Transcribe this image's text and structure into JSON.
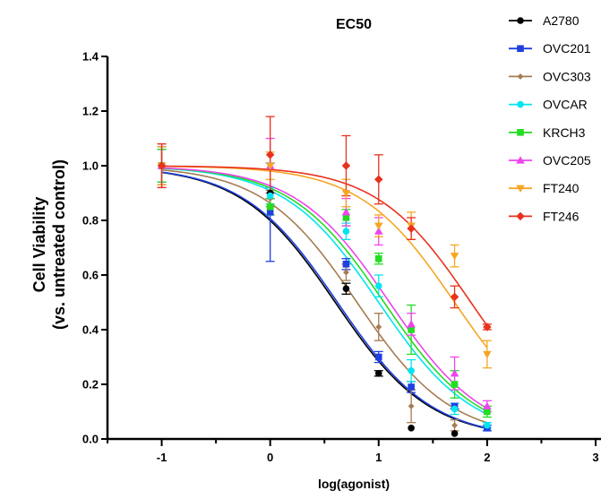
{
  "chart_data": {
    "type": "scatter",
    "title": "EC50",
    "xlabel": "log(agonist)",
    "ylabel_line1": "Cell Viability",
    "ylabel_line2": "(vs. untreated control)",
    "xlim": [
      -1.5,
      3
    ],
    "ylim": [
      0,
      1.4
    ],
    "xticks": [
      -1,
      0,
      1,
      2,
      3
    ],
    "xtick_labels": [
      "-1",
      "0",
      "1",
      "2",
      "3"
    ],
    "yticks": [
      0.0,
      0.2,
      0.4,
      0.6,
      0.8,
      1.0,
      1.2,
      1.4
    ],
    "ytick_labels": [
      "0.0",
      "0.2",
      "0.4",
      "0.6",
      "0.8",
      "1.0",
      "1.2",
      "1.4"
    ],
    "legend_position": "top-right (clipped at right edge)",
    "series": [
      {
        "name": "A2780",
        "color": "#000000",
        "marker": "circle",
        "x": [
          -1,
          0,
          0.7,
          1,
          1.3,
          1.7
        ],
        "y": [
          1.0,
          0.9,
          0.55,
          0.24,
          0.04,
          0.02
        ],
        "err": [
          0.07,
          0.02,
          0.02,
          0.01,
          0,
          0
        ],
        "fit": {
          "top": 1.0,
          "bottom": 0.0,
          "logEC50": 0.6,
          "hill": 1.0
        }
      },
      {
        "name": "OVC201",
        "color": "#1f3fe0",
        "marker": "square",
        "x": [
          -1,
          0,
          0.7,
          1,
          1.3,
          1.7,
          2
        ],
        "y": [
          1.0,
          0.83,
          0.64,
          0.3,
          0.19,
          0.12,
          0.04
        ],
        "err": [
          0.06,
          0.18,
          0.02,
          0.02,
          0.02,
          0.01,
          0.01
        ],
        "fit": {
          "top": 1.0,
          "bottom": 0.0,
          "logEC50": 0.62,
          "hill": 1.0
        }
      },
      {
        "name": "OVC303",
        "color": "#a67c52",
        "marker": "diamond-small",
        "x": [
          -1,
          0,
          0.7,
          1,
          1.3,
          1.7
        ],
        "y": [
          1.0,
          0.88,
          0.61,
          0.41,
          0.12,
          0.05
        ],
        "err": [
          0.06,
          0.03,
          0.03,
          0.05,
          0.06,
          0.02
        ],
        "fit": {
          "top": 1.0,
          "bottom": 0.0,
          "logEC50": 0.8,
          "hill": 1.0
        }
      },
      {
        "name": "OVCAR",
        "color": "#00e5ef",
        "marker": "circle",
        "x": [
          -1,
          0,
          0.7,
          1,
          1.3,
          1.7,
          2
        ],
        "y": [
          1.0,
          0.89,
          0.76,
          0.56,
          0.25,
          0.11,
          0.05
        ],
        "err": [
          0.06,
          0.03,
          0.03,
          0.04,
          0.04,
          0.02,
          0.01
        ],
        "fit": {
          "top": 1.0,
          "bottom": 0.0,
          "logEC50": 1.0,
          "hill": 1.0
        }
      },
      {
        "name": "KRCH3",
        "color": "#22dd22",
        "marker": "square",
        "x": [
          -1,
          0,
          0.7,
          1,
          1.3,
          1.7,
          2
        ],
        "y": [
          1.0,
          0.85,
          0.81,
          0.66,
          0.4,
          0.2,
          0.1
        ],
        "err": [
          0.06,
          0.03,
          0.03,
          0.02,
          0.09,
          0.05,
          0.02
        ],
        "fit": {
          "top": 1.0,
          "bottom": 0.0,
          "logEC50": 1.05,
          "hill": 1.0
        }
      },
      {
        "name": "OVC205",
        "color": "#ee44ee",
        "marker": "triangle-up",
        "x": [
          -1,
          0,
          0.7,
          1,
          1.3,
          1.7,
          2
        ],
        "y": [
          1.0,
          1.0,
          0.83,
          0.76,
          0.42,
          0.24,
          0.12
        ],
        "err": [
          0.08,
          0.1,
          0.05,
          0.05,
          0.04,
          0.06,
          0.02
        ],
        "fit": {
          "top": 1.0,
          "bottom": 0.0,
          "logEC50": 1.1,
          "hill": 1.0
        }
      },
      {
        "name": "FT240",
        "color": "#f5a623",
        "marker": "triangle-down",
        "x": [
          -1,
          0,
          0.7,
          1,
          1.3,
          1.7,
          2
        ],
        "y": [
          1.0,
          1.0,
          0.9,
          0.78,
          0.78,
          0.67,
          0.31
        ],
        "err": [
          0.07,
          0.05,
          0.05,
          0.04,
          0.05,
          0.04,
          0.05
        ],
        "fit": {
          "top": 1.0,
          "bottom": 0.0,
          "logEC50": 1.7,
          "hill": 1.0
        }
      },
      {
        "name": "FT246",
        "color": "#e8321e",
        "marker": "diamond",
        "x": [
          -1,
          0,
          0.7,
          1,
          1.3,
          1.7,
          2
        ],
        "y": [
          1.0,
          1.04,
          1.0,
          0.95,
          0.77,
          0.52,
          0.41
        ],
        "err": [
          0.08,
          0.14,
          0.11,
          0.09,
          0.04,
          0.04,
          0.01
        ],
        "fit": {
          "top": 1.0,
          "bottom": 0.0,
          "logEC50": 1.85,
          "hill": 1.0
        }
      }
    ]
  }
}
